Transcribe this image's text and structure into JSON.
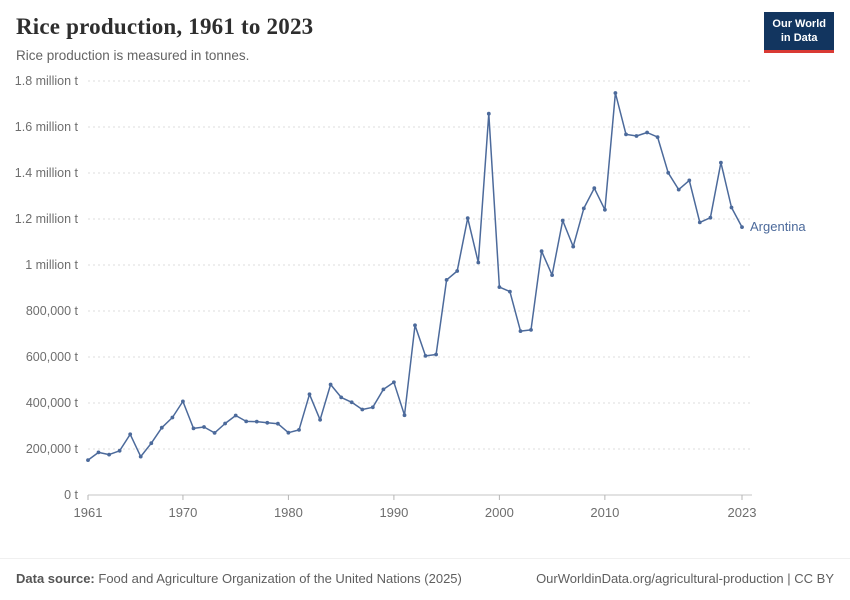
{
  "header": {
    "title": "Rice production, 1961 to 2023",
    "subtitle": "Rice production is measured in tonnes.",
    "logo_line1": "Our World",
    "logo_line2": "in Data"
  },
  "chart_data": {
    "type": "line",
    "title": "Rice production, 1961 to 2023",
    "xlabel": "",
    "ylabel": "tonnes",
    "xlim": [
      1961,
      2023
    ],
    "ylim": [
      0,
      1800000
    ],
    "grid": true,
    "x_ticks": [
      1961,
      1970,
      1980,
      1990,
      2000,
      2010,
      2023
    ],
    "y_ticks": [
      0,
      200000,
      400000,
      600000,
      800000,
      1000000,
      1200000,
      1400000,
      1600000,
      1800000
    ],
    "y_tick_labels": [
      "0 t",
      "200,000 t",
      "400,000 t",
      "600,000 t",
      "800,000 t",
      "1 million t",
      "1.2 million t",
      "1.4 million t",
      "1.6 million t",
      "1.8 million t"
    ],
    "x_tick_labels": [
      "1961",
      "1970",
      "1980",
      "1990",
      "2000",
      "2010",
      "2023"
    ],
    "line_color": "#4c6a9b",
    "grid_color": "#dcdcdc",
    "axis_color": "#b5b5b5",
    "axis_text_color": "#6e6e6e",
    "series": [
      {
        "name": "Argentina",
        "color": "#4c6a9b",
        "x": [
          1961,
          1962,
          1963,
          1964,
          1965,
          1966,
          1967,
          1968,
          1969,
          1970,
          1971,
          1972,
          1973,
          1974,
          1975,
          1976,
          1977,
          1978,
          1979,
          1980,
          1981,
          1982,
          1983,
          1984,
          1985,
          1986,
          1987,
          1988,
          1989,
          1990,
          1991,
          1992,
          1993,
          1994,
          1995,
          1996,
          1997,
          1998,
          1999,
          2000,
          2001,
          2002,
          2003,
          2004,
          2005,
          2006,
          2007,
          2008,
          2009,
          2010,
          2011,
          2012,
          2013,
          2014,
          2015,
          2016,
          2017,
          2018,
          2019,
          2020,
          2021,
          2022,
          2023
        ],
        "values": [
          151900,
          185300,
          175700,
          192100,
          264000,
          167000,
          225300,
          292400,
          337000,
          406800,
          289700,
          295600,
          270100,
          311000,
          345600,
          320000,
          319300,
          313700,
          309800,
          270900,
          283200,
          437800,
          327100,
          480600,
          424300,
          403000,
          371600,
          381300,
          459200,
          490000,
          347000,
          738000,
          605000,
          611000,
          935000,
          974000,
          1203700,
          1011000,
          1658000,
          903900,
          884400,
          712600,
          717700,
          1060100,
          956300,
          1193500,
          1080000,
          1246000,
          1334000,
          1240000,
          1748000,
          1568000,
          1560700,
          1575900,
          1556100,
          1401000,
          1328000,
          1368000,
          1185000,
          1205800,
          1445000,
          1250000,
          1165000
        ]
      }
    ]
  },
  "footer": {
    "datasource_label": "Data source:",
    "datasource_text": "Food and Agriculture Organization of the United Nations (2025)",
    "link": "OurWorldinData.org/agricultural-production | CC BY"
  }
}
